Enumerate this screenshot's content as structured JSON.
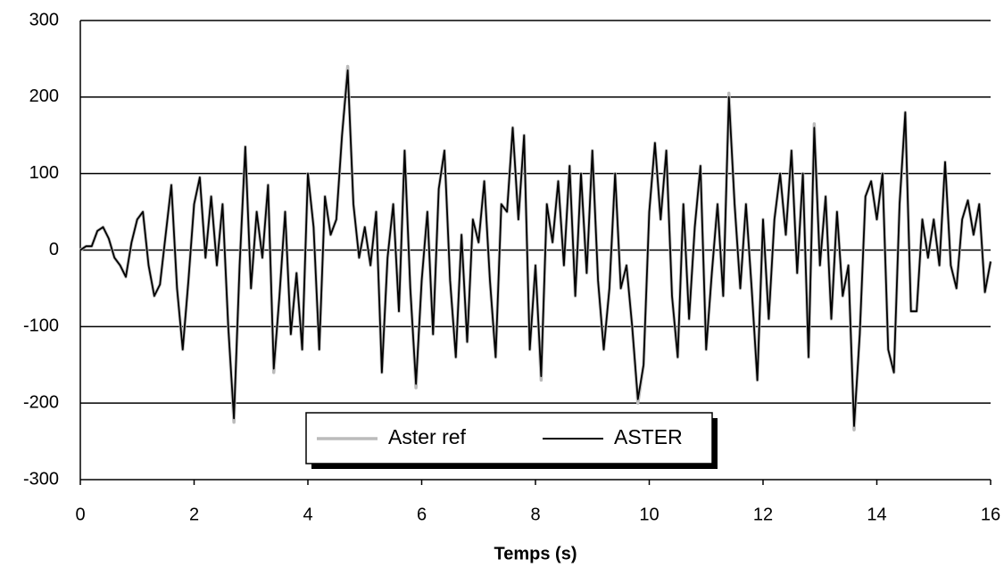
{
  "chart_data": {
    "type": "line",
    "x_label": "Temps (s)",
    "x": [
      0,
      0.1,
      0.2,
      0.3,
      0.4,
      0.5,
      0.6,
      0.7,
      0.8,
      0.9,
      1,
      1.1,
      1.2,
      1.3,
      1.4,
      1.5,
      1.6,
      1.7,
      1.8,
      1.9,
      2,
      2.1,
      2.2,
      2.3,
      2.4,
      2.5,
      2.6,
      2.7,
      2.8,
      2.9,
      3,
      3.1,
      3.2,
      3.3,
      3.4,
      3.5,
      3.6,
      3.7,
      3.8,
      3.9,
      4,
      4.1,
      4.2,
      4.3,
      4.4,
      4.5,
      4.6,
      4.7,
      4.8,
      4.9,
      5,
      5.1,
      5.2,
      5.3,
      5.4,
      5.5,
      5.6,
      5.7,
      5.8,
      5.9,
      6,
      6.1,
      6.2,
      6.3,
      6.4,
      6.5,
      6.6,
      6.7,
      6.8,
      6.9,
      7,
      7.1,
      7.2,
      7.3,
      7.4,
      7.5,
      7.6,
      7.7,
      7.8,
      7.9,
      8,
      8.1,
      8.2,
      8.3,
      8.4,
      8.5,
      8.6,
      8.7,
      8.8,
      8.9,
      9,
      9.1,
      9.2,
      9.3,
      9.4,
      9.5,
      9.6,
      9.7,
      9.8,
      9.9,
      10,
      10.1,
      10.2,
      10.3,
      10.4,
      10.5,
      10.6,
      10.7,
      10.8,
      10.9,
      11,
      11.1,
      11.2,
      11.3,
      11.4,
      11.5,
      11.6,
      11.7,
      11.8,
      11.9,
      12,
      12.1,
      12.2,
      12.3,
      12.4,
      12.5,
      12.6,
      12.7,
      12.8,
      12.9,
      13,
      13.1,
      13.2,
      13.3,
      13.4,
      13.5,
      13.6,
      13.7,
      13.8,
      13.9,
      14,
      14.1,
      14.2,
      14.3,
      14.4,
      14.5,
      14.6,
      14.7,
      14.8,
      14.9,
      15,
      15.1,
      15.2,
      15.3,
      15.4,
      15.5,
      15.6,
      15.7,
      15.8,
      15.9,
      16
    ],
    "series": [
      {
        "name": "Aster ref",
        "color": "#bbbbbb",
        "values": [
          0,
          5,
          5,
          25,
          30,
          15,
          -10,
          -20,
          -35,
          10,
          40,
          50,
          -20,
          -60,
          -45,
          20,
          85,
          -50,
          -130,
          -40,
          60,
          95,
          -10,
          70,
          -20,
          60,
          -100,
          -225,
          -20,
          135,
          -50,
          50,
          -10,
          85,
          -160,
          -60,
          50,
          -110,
          -30,
          -130,
          100,
          30,
          -130,
          70,
          20,
          40,
          150,
          240,
          60,
          -10,
          30,
          -20,
          50,
          -160,
          -10,
          60,
          -80,
          130,
          -50,
          -180,
          -40,
          50,
          -110,
          80,
          130,
          -40,
          -140,
          20,
          -120,
          40,
          10,
          90,
          -40,
          -140,
          60,
          50,
          160,
          40,
          150,
          -130,
          -20,
          -170,
          60,
          10,
          90,
          -20,
          110,
          -60,
          100,
          -30,
          130,
          -40,
          -130,
          -50,
          100,
          -50,
          -20,
          -100,
          -200,
          -150,
          50,
          140,
          40,
          130,
          -60,
          -140,
          60,
          -90,
          30,
          110,
          -130,
          -30,
          60,
          -60,
          205,
          60,
          -50,
          60,
          -50,
          -170,
          40,
          -90,
          40,
          100,
          20,
          130,
          -30,
          100,
          -140,
          165,
          -20,
          70,
          -90,
          50,
          -60,
          -20,
          -235,
          -110,
          70,
          90,
          40,
          100,
          -130,
          -160,
          60,
          180,
          -80,
          -80,
          40,
          -10,
          40,
          -20,
          115,
          -20,
          -50,
          40,
          65,
          20,
          60,
          -55,
          -15
        ]
      },
      {
        "name": "ASTER",
        "color": "#000000",
        "values": [
          0,
          5,
          5,
          25,
          30,
          15,
          -10,
          -20,
          -35,
          10,
          40,
          50,
          -20,
          -60,
          -45,
          20,
          85,
          -50,
          -130,
          -40,
          60,
          95,
          -10,
          70,
          -20,
          60,
          -100,
          -220,
          -20,
          135,
          -50,
          50,
          -10,
          85,
          -155,
          -60,
          50,
          -110,
          -30,
          -130,
          100,
          30,
          -130,
          70,
          20,
          40,
          150,
          235,
          60,
          -10,
          30,
          -20,
          50,
          -160,
          -10,
          60,
          -80,
          130,
          -50,
          -175,
          -40,
          50,
          -110,
          80,
          130,
          -40,
          -140,
          20,
          -120,
          40,
          10,
          90,
          -40,
          -140,
          60,
          50,
          160,
          40,
          150,
          -130,
          -20,
          -165,
          60,
          10,
          90,
          -20,
          110,
          -60,
          100,
          -30,
          130,
          -40,
          -130,
          -50,
          100,
          -50,
          -20,
          -100,
          -195,
          -150,
          50,
          140,
          40,
          130,
          -60,
          -140,
          60,
          -90,
          30,
          110,
          -130,
          -30,
          60,
          -60,
          200,
          60,
          -50,
          60,
          -50,
          -170,
          40,
          -90,
          40,
          100,
          20,
          130,
          -30,
          100,
          -140,
          160,
          -20,
          70,
          -90,
          50,
          -60,
          -20,
          -230,
          -110,
          70,
          90,
          40,
          100,
          -130,
          -160,
          60,
          180,
          -80,
          -80,
          40,
          -10,
          40,
          -20,
          115,
          -20,
          -50,
          40,
          65,
          20,
          60,
          -55,
          -15
        ]
      }
    ],
    "xlim": [
      0,
      16
    ],
    "xticks": [
      0,
      2,
      4,
      6,
      8,
      10,
      12,
      14,
      16
    ],
    "ylim": [
      -300,
      300
    ],
    "yticks": [
      -300,
      -200,
      -100,
      0,
      100,
      200,
      300
    ],
    "grid": true,
    "legend": "bottom"
  }
}
